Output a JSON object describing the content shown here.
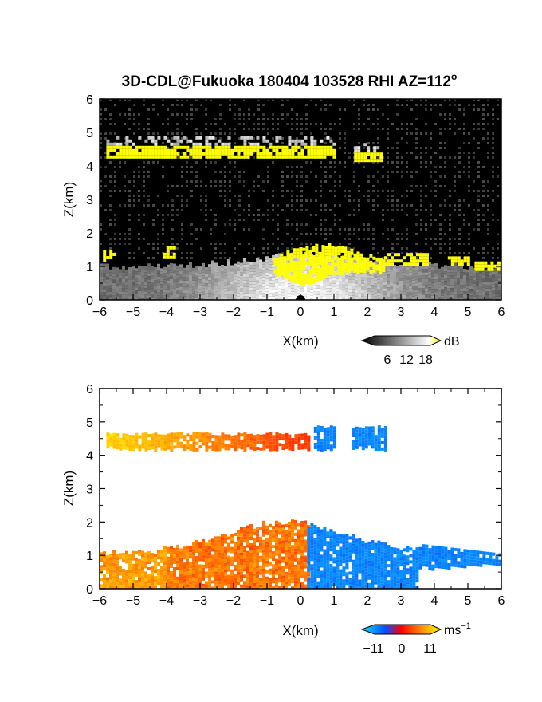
{
  "title": "3D-CDL@Fukuoka 180404 103528 RHI AZ=112",
  "title_superscript": "o",
  "chart_data": [
    {
      "type": "heatmap",
      "name": "backscatter",
      "xlabel": "X(km)",
      "ylabel": "Z(km)",
      "xlim": [
        -6,
        6
      ],
      "ylim": [
        0,
        6
      ],
      "xticks": [
        "−6",
        "−5",
        "−4",
        "−3",
        "−2",
        "−1",
        "0",
        "1",
        "2",
        "3",
        "4",
        "5",
        "6"
      ],
      "yticks": [
        "0",
        "1",
        "2",
        "3",
        "4",
        "5",
        "6"
      ],
      "colorbar": {
        "unit": "dB",
        "ticks": [
          "6",
          "12",
          "18"
        ],
        "range": [
          0,
          21
        ]
      },
      "features": [
        {
          "kind": "cloud",
          "x": [
            -5.8,
            1.0
          ],
          "z": [
            4.3,
            4.6
          ],
          "value": 20
        },
        {
          "kind": "cloud",
          "x": [
            1.6,
            2.4
          ],
          "z": [
            4.2,
            4.4
          ],
          "value": 20
        },
        {
          "kind": "boundary_layer",
          "x": [
            -6,
            6
          ],
          "z": [
            0,
            1.6
          ],
          "value": 10
        },
        {
          "kind": "strong_echo",
          "x": [
            -0.8,
            2.5
          ],
          "z": [
            0.8,
            1.7
          ],
          "value": 20
        }
      ]
    },
    {
      "type": "heatmap",
      "name": "doppler_velocity",
      "xlabel": "X(km)",
      "ylabel": "Z(km)",
      "xlim": [
        -6,
        6
      ],
      "ylim": [
        0,
        6
      ],
      "xticks": [
        "−6",
        "−5",
        "−4",
        "−3",
        "−2",
        "−1",
        "0",
        "1",
        "2",
        "3",
        "4",
        "5",
        "6"
      ],
      "yticks": [
        "0",
        "1",
        "2",
        "3",
        "4",
        "5",
        "6"
      ],
      "colorbar": {
        "unit": "ms",
        "unit_superscript": "−1",
        "ticks": [
          "−11",
          "0",
          "11"
        ],
        "range": [
          -13,
          13
        ]
      },
      "features": [
        {
          "kind": "cloud_receding",
          "x": [
            -5.8,
            0.2
          ],
          "z": [
            4.2,
            4.7
          ],
          "value": 9
        },
        {
          "kind": "cloud_approaching",
          "x": [
            0.4,
            2.5
          ],
          "z": [
            4.2,
            4.9
          ],
          "value": -8
        },
        {
          "kind": "bl_receding",
          "x": [
            -6,
            0.2
          ],
          "z": [
            0,
            2.0
          ],
          "value": 5
        },
        {
          "kind": "bl_approaching",
          "x": [
            0.2,
            6
          ],
          "z": [
            0,
            2.0
          ],
          "value": -8
        }
      ]
    }
  ]
}
